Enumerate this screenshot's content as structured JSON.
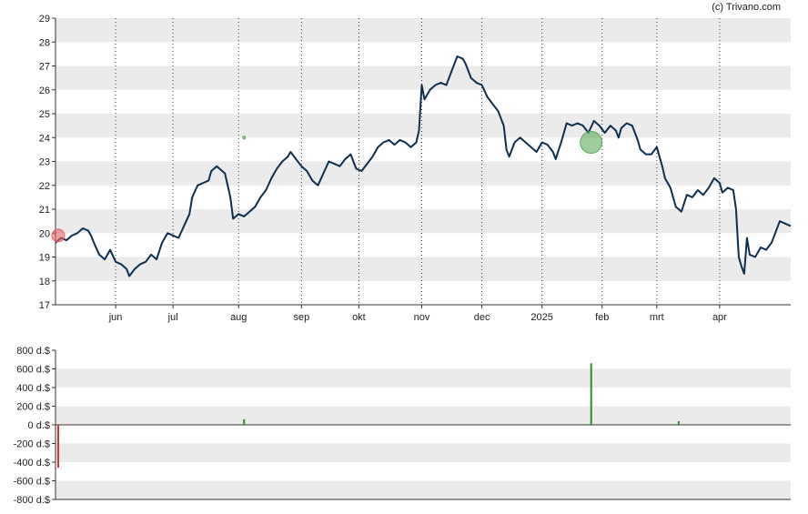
{
  "credit": "(c) Trivano.com",
  "chart_data": [
    {
      "type": "line",
      "yticks": [
        17,
        18,
        19,
        20,
        21,
        22,
        23,
        24,
        25,
        26,
        27,
        28,
        29
      ],
      "ylim": [
        17,
        29
      ],
      "xlim": [
        0,
        269
      ],
      "x_ticks": [
        {
          "label": "jun",
          "x": 22
        },
        {
          "label": "jul",
          "x": 43
        },
        {
          "label": "aug",
          "x": 67
        },
        {
          "label": "sep",
          "x": 90
        },
        {
          "label": "okt",
          "x": 111
        },
        {
          "label": "nov",
          "x": 134
        },
        {
          "label": "dec",
          "x": 156
        },
        {
          "label": "2025",
          "x": 178
        },
        {
          "label": "feb",
          "x": 200
        },
        {
          "label": "mrt",
          "x": 220
        },
        {
          "label": "apr",
          "x": 243
        }
      ],
      "grid": "alternating horizontal bands, dotted vertical lines at month starts",
      "series": [
        {
          "color": "#0d2f4f",
          "points": [
            [
              0,
              19.6
            ],
            [
              2,
              19.8
            ],
            [
              4,
              19.7
            ],
            [
              6,
              19.9
            ],
            [
              8,
              20.0
            ],
            [
              10,
              20.2
            ],
            [
              12,
              20.1
            ],
            [
              13,
              19.9
            ],
            [
              14,
              19.6
            ],
            [
              16,
              19.1
            ],
            [
              18,
              18.9
            ],
            [
              20,
              19.3
            ],
            [
              22,
              18.8
            ],
            [
              24,
              18.7
            ],
            [
              26,
              18.5
            ],
            [
              27,
              18.2
            ],
            [
              29,
              18.5
            ],
            [
              31,
              18.7
            ],
            [
              33,
              18.8
            ],
            [
              35,
              19.1
            ],
            [
              37,
              18.9
            ],
            [
              39,
              19.6
            ],
            [
              41,
              20.0
            ],
            [
              43,
              19.9
            ],
            [
              45,
              19.8
            ],
            [
              47,
              20.3
            ],
            [
              49,
              20.8
            ],
            [
              50,
              21.5
            ],
            [
              52,
              22.0
            ],
            [
              54,
              22.1
            ],
            [
              56,
              22.2
            ],
            [
              57,
              22.6
            ],
            [
              59,
              22.8
            ],
            [
              60,
              22.7
            ],
            [
              62,
              22.5
            ],
            [
              64,
              21.5
            ],
            [
              65,
              20.6
            ],
            [
              67,
              20.8
            ],
            [
              69,
              20.7
            ],
            [
              71,
              20.9
            ],
            [
              73,
              21.1
            ],
            [
              75,
              21.5
            ],
            [
              77,
              21.8
            ],
            [
              79,
              22.3
            ],
            [
              81,
              22.7
            ],
            [
              83,
              23.0
            ],
            [
              85,
              23.2
            ],
            [
              86,
              23.4
            ],
            [
              88,
              23.1
            ],
            [
              90,
              22.8
            ],
            [
              92,
              22.6
            ],
            [
              94,
              22.2
            ],
            [
              96,
              22.0
            ],
            [
              98,
              22.5
            ],
            [
              100,
              23.0
            ],
            [
              102,
              22.9
            ],
            [
              104,
              22.8
            ],
            [
              106,
              23.1
            ],
            [
              108,
              23.3
            ],
            [
              110,
              22.7
            ],
            [
              112,
              22.6
            ],
            [
              114,
              22.9
            ],
            [
              116,
              23.2
            ],
            [
              118,
              23.6
            ],
            [
              120,
              23.8
            ],
            [
              122,
              23.9
            ],
            [
              124,
              23.7
            ],
            [
              126,
              23.9
            ],
            [
              128,
              23.8
            ],
            [
              130,
              23.6
            ],
            [
              132,
              23.8
            ],
            [
              133,
              24.3
            ],
            [
              134,
              26.2
            ],
            [
              135,
              25.6
            ],
            [
              137,
              26.0
            ],
            [
              139,
              26.2
            ],
            [
              141,
              26.3
            ],
            [
              143,
              26.2
            ],
            [
              145,
              26.8
            ],
            [
              147,
              27.4
            ],
            [
              149,
              27.3
            ],
            [
              150,
              27.1
            ],
            [
              152,
              26.5
            ],
            [
              154,
              26.3
            ],
            [
              156,
              26.2
            ],
            [
              158,
              25.7
            ],
            [
              160,
              25.4
            ],
            [
              162,
              25.1
            ],
            [
              164,
              24.5
            ],
            [
              165,
              23.5
            ],
            [
              166,
              23.2
            ],
            [
              168,
              23.8
            ],
            [
              170,
              24.0
            ],
            [
              172,
              23.8
            ],
            [
              174,
              23.6
            ],
            [
              176,
              23.4
            ],
            [
              178,
              23.8
            ],
            [
              180,
              23.7
            ],
            [
              182,
              23.4
            ],
            [
              183,
              23.1
            ],
            [
              185,
              23.8
            ],
            [
              187,
              24.6
            ],
            [
              189,
              24.5
            ],
            [
              191,
              24.6
            ],
            [
              193,
              24.5
            ],
            [
              195,
              24.2
            ],
            [
              197,
              24.7
            ],
            [
              199,
              24.5
            ],
            [
              201,
              24.2
            ],
            [
              203,
              24.5
            ],
            [
              205,
              24.3
            ],
            [
              206,
              24.0
            ],
            [
              207,
              24.4
            ],
            [
              209,
              24.6
            ],
            [
              211,
              24.5
            ],
            [
              213,
              23.9
            ],
            [
              214,
              23.5
            ],
            [
              216,
              23.3
            ],
            [
              218,
              23.3
            ],
            [
              220,
              23.6
            ],
            [
              222,
              22.8
            ],
            [
              223,
              22.3
            ],
            [
              225,
              21.9
            ],
            [
              226,
              21.5
            ],
            [
              227,
              21.1
            ],
            [
              229,
              20.9
            ],
            [
              231,
              21.6
            ],
            [
              233,
              21.5
            ],
            [
              235,
              21.8
            ],
            [
              237,
              21.6
            ],
            [
              239,
              21.9
            ],
            [
              241,
              22.3
            ],
            [
              243,
              22.1
            ],
            [
              244,
              21.7
            ],
            [
              246,
              21.9
            ],
            [
              248,
              21.8
            ],
            [
              249,
              21.0
            ],
            [
              250,
              19.0
            ],
            [
              251,
              18.6
            ],
            [
              252,
              18.3
            ],
            [
              253,
              19.8
            ],
            [
              254,
              19.1
            ],
            [
              256,
              19.0
            ],
            [
              258,
              19.4
            ],
            [
              260,
              19.3
            ],
            [
              262,
              19.6
            ],
            [
              264,
              20.2
            ],
            [
              265,
              20.5
            ],
            [
              267,
              20.4
            ],
            [
              269,
              20.3
            ]
          ]
        }
      ],
      "markers": [
        {
          "x": 1,
          "y": 19.9,
          "color": "#e86060",
          "size": "small"
        },
        {
          "x": 196,
          "y": 23.8,
          "color": "#5caa5c",
          "size": "large"
        },
        {
          "x": 69,
          "y": 24.0,
          "color": "#5caa5c",
          "size": "tiny"
        }
      ]
    },
    {
      "type": "bar",
      "yticks": [
        "800 d.$",
        "600 d.$",
        "400 d.$",
        "200 d.$",
        "0 d.$",
        "-200 d.$",
        "-400 d.$",
        "-600 d.$",
        "-800 d.$"
      ],
      "ylim": [
        -800,
        800
      ],
      "xlim": [
        0,
        269
      ],
      "grid": "alternating horizontal bands",
      "bars": [
        {
          "x": 1,
          "value": -460,
          "color": "#e03030"
        },
        {
          "x": 69,
          "value": 60,
          "color": "#2e8b2e"
        },
        {
          "x": 196,
          "value": 660,
          "color": "#2e8b2e"
        },
        {
          "x": 228,
          "value": 40,
          "color": "#2e8b2e"
        }
      ]
    }
  ]
}
